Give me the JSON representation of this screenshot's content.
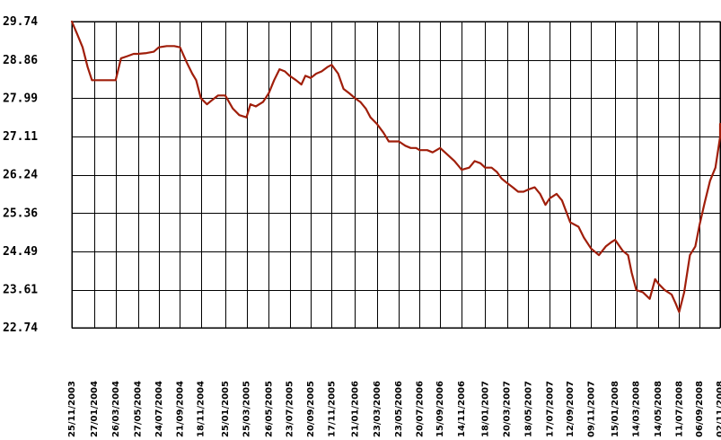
{
  "chart_data": {
    "type": "line",
    "title": "",
    "xlabel": "",
    "ylabel": "",
    "ylim": [
      22.74,
      29.74
    ],
    "y_ticks": [
      "29.74",
      "28.86",
      "27.99",
      "27.11",
      "26.24",
      "25.36",
      "24.49",
      "23.61",
      "22.74"
    ],
    "x_ticks": [
      "25/11/2003",
      "27/01/2004",
      "26/03/2004",
      "27/05/2004",
      "24/07/2004",
      "21/09/2004",
      "18/11/2004",
      "25/01/2005",
      "25/03/2005",
      "26/05/2005",
      "23/07/2005",
      "20/09/2005",
      "17/11/2005",
      "21/01/2006",
      "23/03/2006",
      "23/05/2006",
      "20/07/2006",
      "15/09/2006",
      "14/11/2006",
      "18/01/2007",
      "20/03/2007",
      "18/05/2007",
      "17/07/2007",
      "12/09/2007",
      "09/11/2007",
      "15/01/2008",
      "14/03/2008",
      "14/05/2008",
      "11/07/2008",
      "06/09/2008",
      "02/11/2008"
    ],
    "grid": true,
    "legend": "none",
    "series": [
      {
        "color": "#a01e0a",
        "x": [
          "2003-11-25",
          "2003-12-10",
          "2003-12-25",
          "2004-01-08",
          "2004-01-20",
          "2004-01-27",
          "2004-02-20",
          "2004-03-10",
          "2004-03-26",
          "2004-04-10",
          "2004-04-28",
          "2004-05-15",
          "2004-05-27",
          "2004-06-20",
          "2004-07-10",
          "2004-07-24",
          "2004-08-15",
          "2004-09-05",
          "2004-09-21",
          "2004-10-10",
          "2004-10-25",
          "2004-11-05",
          "2004-11-18",
          "2004-12-05",
          "2004-12-20",
          "2005-01-05",
          "2005-01-25",
          "2005-02-15",
          "2005-03-05",
          "2005-03-25",
          "2005-04-05",
          "2005-04-20",
          "2005-05-10",
          "2005-05-26",
          "2005-06-10",
          "2005-06-25",
          "2005-07-10",
          "2005-07-23",
          "2005-08-10",
          "2005-08-25",
          "2005-09-05",
          "2005-09-20",
          "2005-10-05",
          "2005-10-20",
          "2005-11-05",
          "2005-11-17",
          "2005-12-05",
          "2005-12-20",
          "2006-01-05",
          "2006-01-21",
          "2006-02-05",
          "2006-02-20",
          "2006-03-05",
          "2006-03-23",
          "2006-04-10",
          "2006-04-25",
          "2006-05-10",
          "2006-05-23",
          "2006-06-10",
          "2006-06-25",
          "2006-07-10",
          "2006-07-20",
          "2006-08-10",
          "2006-08-25",
          "2006-09-15",
          "2006-10-05",
          "2006-10-25",
          "2006-11-14",
          "2006-12-05",
          "2006-12-20",
          "2007-01-05",
          "2007-01-18",
          "2007-02-05",
          "2007-02-20",
          "2007-03-05",
          "2007-03-20",
          "2007-04-05",
          "2007-04-20",
          "2007-05-05",
          "2007-05-18",
          "2007-06-05",
          "2007-06-20",
          "2007-07-05",
          "2007-07-17",
          "2007-08-05",
          "2007-08-20",
          "2007-09-12",
          "2007-10-05",
          "2007-10-20",
          "2007-11-09",
          "2007-12-01",
          "2007-12-20",
          "2008-01-05",
          "2008-01-15",
          "2008-02-05",
          "2008-02-20",
          "2008-03-01",
          "2008-03-14",
          "2008-04-01",
          "2008-04-20",
          "2008-05-05",
          "2008-05-14",
          "2008-06-01",
          "2008-06-20",
          "2008-07-01",
          "2008-07-11",
          "2008-07-25",
          "2008-08-10",
          "2008-08-25",
          "2008-09-06",
          "2008-09-20",
          "2008-10-05",
          "2008-10-20",
          "2008-11-02",
          "2008-11-10"
        ],
        "values": [
          29.74,
          29.45,
          29.15,
          28.7,
          28.4,
          28.4,
          28.4,
          28.4,
          28.4,
          28.9,
          28.95,
          29.0,
          29.0,
          29.02,
          29.05,
          29.15,
          29.18,
          29.18,
          29.15,
          28.8,
          28.55,
          28.4,
          27.99,
          27.85,
          27.95,
          28.05,
          28.05,
          27.75,
          27.6,
          27.55,
          27.85,
          27.8,
          27.9,
          28.1,
          28.4,
          28.65,
          28.6,
          28.5,
          28.4,
          28.3,
          28.5,
          28.45,
          28.55,
          28.6,
          28.7,
          28.75,
          28.55,
          28.2,
          28.1,
          27.99,
          27.9,
          27.75,
          27.55,
          27.4,
          27.2,
          27.0,
          27.0,
          27.0,
          26.9,
          26.85,
          26.85,
          26.8,
          26.8,
          26.75,
          26.85,
          26.7,
          26.55,
          26.35,
          26.4,
          26.55,
          26.5,
          26.4,
          26.4,
          26.3,
          26.15,
          26.05,
          25.95,
          25.85,
          25.85,
          25.9,
          25.95,
          25.8,
          25.55,
          25.7,
          25.8,
          25.65,
          25.15,
          25.05,
          24.8,
          24.55,
          24.4,
          24.6,
          24.7,
          24.75,
          24.5,
          24.4,
          24.0,
          23.6,
          23.55,
          23.4,
          23.85,
          23.75,
          23.6,
          23.5,
          23.3,
          23.1,
          23.55,
          24.4,
          24.6,
          25.1,
          25.6,
          26.1,
          26.4,
          27.1,
          27.4
        ]
      }
    ]
  }
}
